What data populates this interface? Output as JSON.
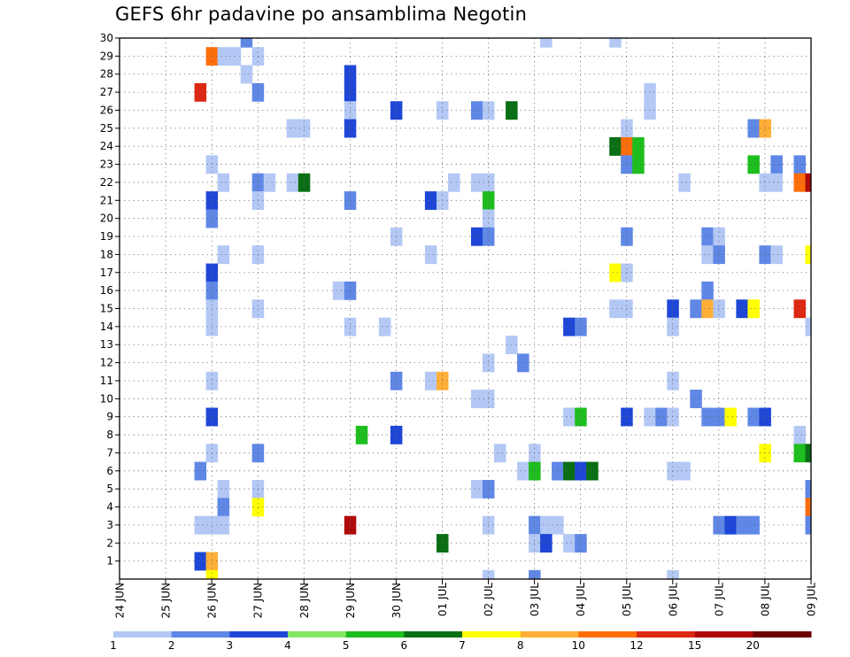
{
  "title": "GEFS 6hr padavine po ansamblima Negotin",
  "chart_data": {
    "type": "heatmap",
    "title": "GEFS 6hr padavine po ansamblima Negotin",
    "x_tick_labels": [
      "24 JUN",
      "25 JUN",
      "26 JUN",
      "27 JUN",
      "28 JUN",
      "29 JUN",
      "30 JUN",
      "01 JUL",
      "02 JUL",
      "03 JUL",
      "04 JUL",
      "05 JUL",
      "06 JUL",
      "07 JUL",
      "08 JUL",
      "09 JUL"
    ],
    "y_tick_labels": [
      "1",
      "2",
      "3",
      "4",
      "5",
      "6",
      "7",
      "8",
      "9",
      "10",
      "11",
      "12",
      "13",
      "14",
      "15",
      "16",
      "17",
      "18",
      "19",
      "20",
      "21",
      "22",
      "23",
      "24",
      "25",
      "26",
      "27",
      "28",
      "29",
      "30"
    ],
    "x_range_days": [
      0,
      15
    ],
    "y_range": [
      0,
      30
    ],
    "grid": true,
    "legend": {
      "placement": "bottom",
      "labels": [
        "1",
        "2",
        "3",
        "4",
        "5",
        "6",
        "7",
        "8",
        "10",
        "12",
        "15",
        "20"
      ],
      "colors": [
        "#b4c8f5",
        "#5f87e6",
        "#1e46d7",
        "#82e664",
        "#1ebe1e",
        "#0a6e14",
        "#ffff00",
        "#ffaf37",
        "#ff6e0a",
        "#dc2814",
        "#af0a0a",
        "#6e0000"
      ]
    },
    "cells": [
      {
        "member": 30,
        "day": 2.75,
        "value": 2
      },
      {
        "member": 30,
        "day": 9.25,
        "value": 1
      },
      {
        "member": 30,
        "day": 10.75,
        "value": 1
      },
      {
        "member": 29,
        "day": 2.0,
        "value": 10
      },
      {
        "member": 29,
        "day": 2.25,
        "value": 1
      },
      {
        "member": 29,
        "day": 2.5,
        "value": 1
      },
      {
        "member": 29,
        "day": 3.0,
        "value": 1
      },
      {
        "member": 28,
        "day": 2.75,
        "value": 1
      },
      {
        "member": 28,
        "day": 5.0,
        "value": 3
      },
      {
        "member": 27,
        "day": 1.75,
        "value": 12
      },
      {
        "member": 27,
        "day": 3.0,
        "value": 2
      },
      {
        "member": 27,
        "day": 5.0,
        "value": 3
      },
      {
        "member": 27,
        "day": 11.5,
        "value": 1
      },
      {
        "member": 26,
        "day": 5.0,
        "value": 1
      },
      {
        "member": 26,
        "day": 6.0,
        "value": 3
      },
      {
        "member": 26,
        "day": 7.0,
        "value": 1
      },
      {
        "member": 26,
        "day": 7.75,
        "value": 2
      },
      {
        "member": 26,
        "day": 8.0,
        "value": 1
      },
      {
        "member": 26,
        "day": 8.5,
        "value": 6
      },
      {
        "member": 26,
        "day": 11.5,
        "value": 1
      },
      {
        "member": 25,
        "day": 3.75,
        "value": 1
      },
      {
        "member": 25,
        "day": 4.0,
        "value": 1
      },
      {
        "member": 25,
        "day": 5.0,
        "value": 3
      },
      {
        "member": 25,
        "day": 11.0,
        "value": 1
      },
      {
        "member": 25,
        "day": 13.75,
        "value": 2
      },
      {
        "member": 25,
        "day": 14.0,
        "value": 8
      },
      {
        "member": 24,
        "day": 10.75,
        "value": 6
      },
      {
        "member": 24,
        "day": 11.0,
        "value": 10
      },
      {
        "member": 24,
        "day": 11.25,
        "value": 5
      },
      {
        "member": 23,
        "day": 2.0,
        "value": 1
      },
      {
        "member": 23,
        "day": 11.0,
        "value": 2
      },
      {
        "member": 23,
        "day": 11.25,
        "value": 5
      },
      {
        "member": 23,
        "day": 13.75,
        "value": 5
      },
      {
        "member": 23,
        "day": 14.25,
        "value": 2
      },
      {
        "member": 23,
        "day": 14.75,
        "value": 2
      },
      {
        "member": 22,
        "day": 2.25,
        "value": 1
      },
      {
        "member": 22,
        "day": 3.0,
        "value": 2
      },
      {
        "member": 22,
        "day": 3.25,
        "value": 1
      },
      {
        "member": 22,
        "day": 3.75,
        "value": 1
      },
      {
        "member": 22,
        "day": 4.0,
        "value": 6
      },
      {
        "member": 22,
        "day": 7.25,
        "value": 1
      },
      {
        "member": 22,
        "day": 7.75,
        "value": 1
      },
      {
        "member": 22,
        "day": 8.0,
        "value": 1
      },
      {
        "member": 22,
        "day": 12.25,
        "value": 1
      },
      {
        "member": 22,
        "day": 14.0,
        "value": 1
      },
      {
        "member": 22,
        "day": 14.25,
        "value": 1
      },
      {
        "member": 22,
        "day": 14.75,
        "value": 10
      },
      {
        "member": 22,
        "day": 15.0,
        "value": 15
      },
      {
        "member": 21,
        "day": 2.0,
        "value": 3
      },
      {
        "member": 21,
        "day": 3.0,
        "value": 1
      },
      {
        "member": 21,
        "day": 5.0,
        "value": 2
      },
      {
        "member": 21,
        "day": 6.75,
        "value": 3
      },
      {
        "member": 21,
        "day": 7.0,
        "value": 1
      },
      {
        "member": 21,
        "day": 8.0,
        "value": 5
      },
      {
        "member": 20,
        "day": 2.0,
        "value": 2
      },
      {
        "member": 20,
        "day": 8.0,
        "value": 1
      },
      {
        "member": 19,
        "day": 6.0,
        "value": 1
      },
      {
        "member": 19,
        "day": 7.75,
        "value": 3
      },
      {
        "member": 19,
        "day": 8.0,
        "value": 2
      },
      {
        "member": 19,
        "day": 11.0,
        "value": 2
      },
      {
        "member": 19,
        "day": 12.75,
        "value": 2
      },
      {
        "member": 19,
        "day": 13.0,
        "value": 1
      },
      {
        "member": 18,
        "day": 2.25,
        "value": 1
      },
      {
        "member": 18,
        "day": 3.0,
        "value": 1
      },
      {
        "member": 18,
        "day": 6.75,
        "value": 1
      },
      {
        "member": 18,
        "day": 12.75,
        "value": 1
      },
      {
        "member": 18,
        "day": 13.0,
        "value": 2
      },
      {
        "member": 18,
        "day": 14.0,
        "value": 2
      },
      {
        "member": 18,
        "day": 14.25,
        "value": 1
      },
      {
        "member": 18,
        "day": 15.0,
        "value": 7
      },
      {
        "member": 17,
        "day": 2.0,
        "value": 3
      },
      {
        "member": 17,
        "day": 10.75,
        "value": 7
      },
      {
        "member": 17,
        "day": 11.0,
        "value": 1
      },
      {
        "member": 16,
        "day": 2.0,
        "value": 2
      },
      {
        "member": 16,
        "day": 4.75,
        "value": 1
      },
      {
        "member": 16,
        "day": 5.0,
        "value": 2
      },
      {
        "member": 16,
        "day": 12.75,
        "value": 2
      },
      {
        "member": 15,
        "day": 2.0,
        "value": 1
      },
      {
        "member": 15,
        "day": 3.0,
        "value": 1
      },
      {
        "member": 15,
        "day": 10.75,
        "value": 1
      },
      {
        "member": 15,
        "day": 11.0,
        "value": 1
      },
      {
        "member": 15,
        "day": 12.0,
        "value": 3
      },
      {
        "member": 15,
        "day": 12.5,
        "value": 2
      },
      {
        "member": 15,
        "day": 12.75,
        "value": 8
      },
      {
        "member": 15,
        "day": 13.0,
        "value": 1
      },
      {
        "member": 15,
        "day": 13.5,
        "value": 3
      },
      {
        "member": 15,
        "day": 13.75,
        "value": 7
      },
      {
        "member": 15,
        "day": 14.75,
        "value": 12
      },
      {
        "member": 14,
        "day": 2.0,
        "value": 1
      },
      {
        "member": 14,
        "day": 5.0,
        "value": 1
      },
      {
        "member": 14,
        "day": 5.75,
        "value": 1
      },
      {
        "member": 14,
        "day": 9.75,
        "value": 3
      },
      {
        "member": 14,
        "day": 10.0,
        "value": 2
      },
      {
        "member": 14,
        "day": 12.0,
        "value": 1
      },
      {
        "member": 14,
        "day": 15.0,
        "value": 1
      },
      {
        "member": 13,
        "day": 8.5,
        "value": 1
      },
      {
        "member": 12,
        "day": 8.0,
        "value": 1
      },
      {
        "member": 12,
        "day": 8.75,
        "value": 2
      },
      {
        "member": 11,
        "day": 2.0,
        "value": 1
      },
      {
        "member": 11,
        "day": 6.0,
        "value": 2
      },
      {
        "member": 11,
        "day": 6.75,
        "value": 1
      },
      {
        "member": 11,
        "day": 7.0,
        "value": 8
      },
      {
        "member": 11,
        "day": 12.0,
        "value": 1
      },
      {
        "member": 10,
        "day": 7.75,
        "value": 1
      },
      {
        "member": 10,
        "day": 8.0,
        "value": 1
      },
      {
        "member": 10,
        "day": 12.5,
        "value": 2
      },
      {
        "member": 9,
        "day": 2.0,
        "value": 3
      },
      {
        "member": 9,
        "day": 9.75,
        "value": 1
      },
      {
        "member": 9,
        "day": 10.0,
        "value": 5
      },
      {
        "member": 9,
        "day": 11.0,
        "value": 3
      },
      {
        "member": 9,
        "day": 11.5,
        "value": 1
      },
      {
        "member": 9,
        "day": 11.75,
        "value": 2
      },
      {
        "member": 9,
        "day": 12.0,
        "value": 1
      },
      {
        "member": 9,
        "day": 12.75,
        "value": 2
      },
      {
        "member": 9,
        "day": 13.0,
        "value": 2
      },
      {
        "member": 9,
        "day": 13.25,
        "value": 7
      },
      {
        "member": 9,
        "day": 13.75,
        "value": 2
      },
      {
        "member": 9,
        "day": 14.0,
        "value": 3
      },
      {
        "member": 8,
        "day": 5.25,
        "value": 5
      },
      {
        "member": 8,
        "day": 6.0,
        "value": 3
      },
      {
        "member": 8,
        "day": 14.75,
        "value": 1
      },
      {
        "member": 7,
        "day": 2.0,
        "value": 1
      },
      {
        "member": 7,
        "day": 3.0,
        "value": 2
      },
      {
        "member": 7,
        "day": 8.25,
        "value": 1
      },
      {
        "member": 7,
        "day": 9.0,
        "value": 1
      },
      {
        "member": 7,
        "day": 14.0,
        "value": 7
      },
      {
        "member": 7,
        "day": 14.75,
        "value": 5
      },
      {
        "member": 7,
        "day": 15.0,
        "value": 6
      },
      {
        "member": 6,
        "day": 1.75,
        "value": 2
      },
      {
        "member": 6,
        "day": 8.75,
        "value": 1
      },
      {
        "member": 6,
        "day": 9.0,
        "value": 5
      },
      {
        "member": 6,
        "day": 9.5,
        "value": 2
      },
      {
        "member": 6,
        "day": 9.75,
        "value": 6
      },
      {
        "member": 6,
        "day": 10.0,
        "value": 3
      },
      {
        "member": 6,
        "day": 10.25,
        "value": 6
      },
      {
        "member": 6,
        "day": 12.0,
        "value": 1
      },
      {
        "member": 6,
        "day": 12.25,
        "value": 1
      },
      {
        "member": 5,
        "day": 2.25,
        "value": 1
      },
      {
        "member": 5,
        "day": 3.0,
        "value": 1
      },
      {
        "member": 5,
        "day": 7.75,
        "value": 1
      },
      {
        "member": 5,
        "day": 8.0,
        "value": 2
      },
      {
        "member": 5,
        "day": 15.0,
        "value": 2
      },
      {
        "member": 4,
        "day": 2.25,
        "value": 2
      },
      {
        "member": 4,
        "day": 3.0,
        "value": 7
      },
      {
        "member": 4,
        "day": 15.0,
        "value": 10
      },
      {
        "member": 3,
        "day": 1.75,
        "value": 1
      },
      {
        "member": 3,
        "day": 2.0,
        "value": 1
      },
      {
        "member": 3,
        "day": 2.25,
        "value": 1
      },
      {
        "member": 3,
        "day": 5.0,
        "value": 15
      },
      {
        "member": 3,
        "day": 8.0,
        "value": 1
      },
      {
        "member": 3,
        "day": 9.0,
        "value": 2
      },
      {
        "member": 3,
        "day": 9.25,
        "value": 1
      },
      {
        "member": 3,
        "day": 9.5,
        "value": 1
      },
      {
        "member": 3,
        "day": 13.0,
        "value": 2
      },
      {
        "member": 3,
        "day": 13.25,
        "value": 3
      },
      {
        "member": 3,
        "day": 13.5,
        "value": 2
      },
      {
        "member": 3,
        "day": 13.75,
        "value": 2
      },
      {
        "member": 3,
        "day": 15.0,
        "value": 2
      },
      {
        "member": 2,
        "day": 7.0,
        "value": 6
      },
      {
        "member": 2,
        "day": 9.0,
        "value": 1
      },
      {
        "member": 2,
        "day": 9.25,
        "value": 3
      },
      {
        "member": 2,
        "day": 9.75,
        "value": 1
      },
      {
        "member": 2,
        "day": 10.0,
        "value": 2
      },
      {
        "member": 1,
        "day": 1.75,
        "value": 3
      },
      {
        "member": 1,
        "day": 2.0,
        "value": 8
      },
      {
        "member": 0,
        "day": 2.0,
        "value": 7
      },
      {
        "member": 0,
        "day": 8.0,
        "value": 1
      },
      {
        "member": 0,
        "day": 9.0,
        "value": 2
      },
      {
        "member": 0,
        "day": 12.0,
        "value": 1
      }
    ]
  }
}
